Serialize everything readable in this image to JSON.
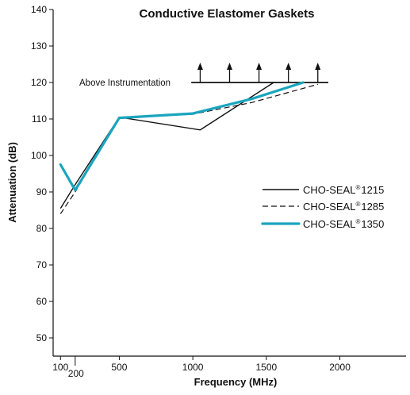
{
  "chart_data": {
    "type": "line",
    "title": "Conductive Elastomer Gaskets",
    "xlabel": "Frequency (MHz)",
    "ylabel": "Attenuation (dB)",
    "xlim": [
      50,
      2450
    ],
    "ylim": [
      45,
      140
    ],
    "x_ticks": [
      100,
      200,
      500,
      1000,
      1500,
      2000
    ],
    "y_ticks": [
      50,
      60,
      70,
      80,
      90,
      100,
      110,
      120,
      130,
      140
    ],
    "grid": false,
    "legend_position": "right",
    "series": [
      {
        "name": "CHO-SEAL",
        "model": "1215",
        "style": "solid",
        "color": "#111111",
        "points": [
          [
            100,
            85.5
          ],
          [
            200,
            92
          ],
          [
            500,
            110.5
          ],
          [
            1050,
            107
          ],
          [
            1550,
            120
          ]
        ]
      },
      {
        "name": "CHO-SEAL",
        "model": "1285",
        "style": "dashed",
        "color": "#111111",
        "points": [
          [
            100,
            84
          ],
          [
            200,
            90
          ],
          [
            500,
            110.3
          ],
          [
            1000,
            111.3
          ],
          [
            1400,
            114.5
          ],
          [
            1850,
            119.5
          ]
        ]
      },
      {
        "name": "CHO-SEAL",
        "model": "1350",
        "style": "thick",
        "color": "#1aa5be",
        "points": [
          [
            100,
            97.5
          ],
          [
            200,
            90.5
          ],
          [
            500,
            110.3
          ],
          [
            1000,
            111.5
          ],
          [
            1400,
            115.5
          ],
          [
            1750,
            120
          ]
        ]
      }
    ],
    "annotation": {
      "text": "Above Instrumentation",
      "y": 120,
      "x_start": 1000,
      "x_end": 1900,
      "arrow_x": [
        1050,
        1250,
        1450,
        1650,
        1850
      ]
    }
  }
}
